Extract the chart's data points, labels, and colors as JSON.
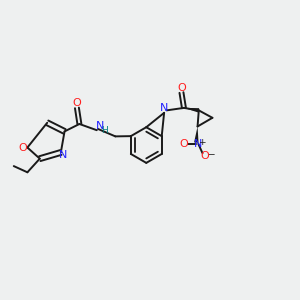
{
  "bg_color": "#eef0f0",
  "bond_color": "#1a1a1a",
  "N_color": "#2020ff",
  "O_color": "#ff2020",
  "NH_color": "#008080",
  "lw": 1.4,
  "fs": 8.0,
  "fs_small": 6.5,
  "xlim": [
    0,
    12
  ],
  "ylim": [
    0,
    10
  ]
}
